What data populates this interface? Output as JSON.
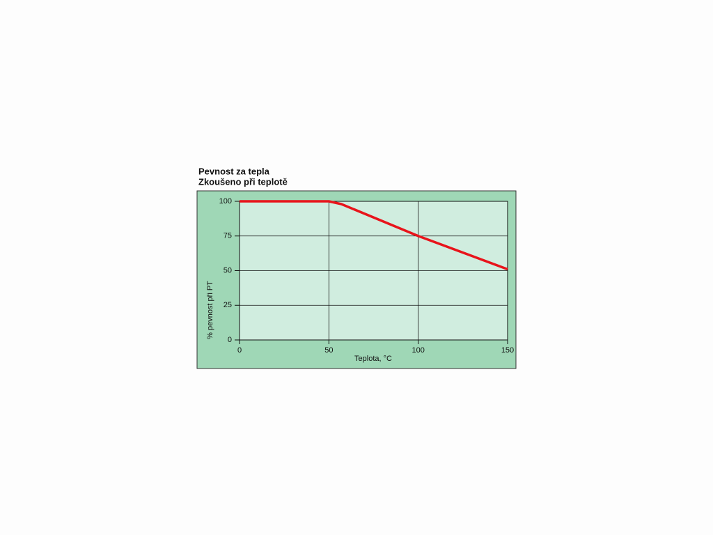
{
  "chart_data": {
    "type": "line",
    "title": "Pevnost za tepla",
    "subtitle": "Zkoušeno při teplotě",
    "x_label": "Teplota, °C",
    "y_label": "% pevnost při PT",
    "x": [
      0,
      50,
      57,
      100,
      150
    ],
    "values": [
      100,
      100,
      98,
      75,
      51
    ],
    "color": "#e8141b",
    "xlim": [
      0,
      150
    ],
    "xticks": [
      0,
      50,
      100,
      150
    ],
    "ylim": [
      0,
      100
    ],
    "yticks": [
      0,
      25,
      50,
      75,
      100
    ],
    "grid": true
  }
}
